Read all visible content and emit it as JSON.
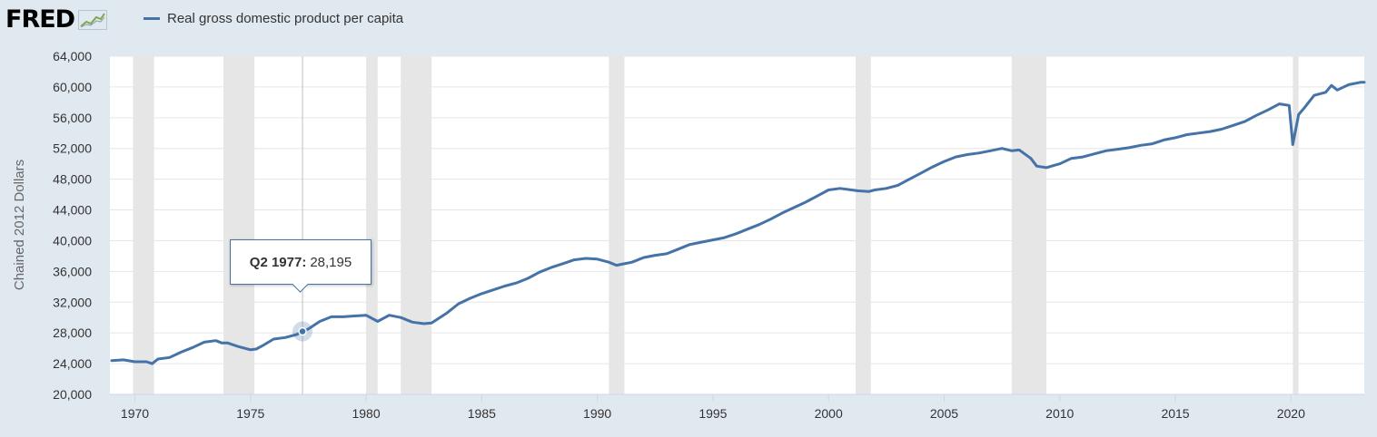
{
  "header": {
    "logo_text": "FRED",
    "legend_label": "Real gross domestic product per capita"
  },
  "tooltip": {
    "period": "Q2 1977:",
    "value": "28,195"
  },
  "colors": {
    "series": "#4572a7",
    "recession": "#e6e6e6",
    "background": "#e1e9f0",
    "grid": "#e6e6e6"
  },
  "chart_data": {
    "type": "line",
    "title": "",
    "xlabel": "",
    "ylabel": "Chained 2012 Dollars",
    "xlim": [
      1968.92,
      2023.17
    ],
    "ylim": [
      20000,
      64000
    ],
    "y_ticks": [
      "20,000",
      "24,000",
      "28,000",
      "32,000",
      "36,000",
      "40,000",
      "44,000",
      "48,000",
      "52,000",
      "56,000",
      "60,000",
      "64,000"
    ],
    "x_ticks": [
      "1970",
      "1975",
      "1980",
      "1985",
      "1990",
      "1995",
      "2000",
      "2005",
      "2010",
      "2015",
      "2020"
    ],
    "grid": true,
    "recessions": [
      [
        1969.92,
        1970.83
      ],
      [
        1973.83,
        1975.17
      ],
      [
        1980.0,
        1980.5
      ],
      [
        1981.5,
        1982.83
      ],
      [
        1990.5,
        1991.17
      ],
      [
        2001.17,
        2001.83
      ],
      [
        2007.92,
        2009.42
      ],
      [
        2020.08,
        2020.33
      ]
    ],
    "highlight": {
      "x": 1977.25,
      "y": 28195,
      "label": "Q2 1977"
    },
    "series": [
      {
        "name": "Real gross domestic product per capita",
        "x": [
          1969.0,
          1969.5,
          1970.0,
          1970.5,
          1970.75,
          1971.0,
          1971.5,
          1972.0,
          1972.5,
          1973.0,
          1973.5,
          1973.75,
          1974.0,
          1974.5,
          1975.0,
          1975.25,
          1975.5,
          1976.0,
          1976.5,
          1977.0,
          1977.25,
          1977.5,
          1978.0,
          1978.5,
          1979.0,
          1979.5,
          1980.0,
          1980.5,
          1981.0,
          1981.5,
          1982.0,
          1982.5,
          1982.83,
          1983.5,
          1984.0,
          1984.5,
          1985.0,
          1985.5,
          1986.0,
          1986.5,
          1987.0,
          1987.5,
          1988.0,
          1988.5,
          1989.0,
          1989.5,
          1990.0,
          1990.5,
          1990.83,
          1991.17,
          1991.5,
          1992.0,
          1992.5,
          1993.0,
          1993.5,
          1994.0,
          1994.5,
          1995.0,
          1995.5,
          1996.0,
          1996.5,
          1997.0,
          1997.5,
          1998.0,
          1998.5,
          1999.0,
          1999.5,
          2000.0,
          2000.5,
          2001.0,
          2001.25,
          2001.75,
          2002.0,
          2002.5,
          2003.0,
          2003.5,
          2004.0,
          2004.5,
          2005.0,
          2005.5,
          2006.0,
          2006.5,
          2007.0,
          2007.5,
          2007.92,
          2008.25,
          2008.75,
          2009.0,
          2009.42,
          2009.75,
          2010.0,
          2010.5,
          2011.0,
          2011.5,
          2012.0,
          2012.5,
          2013.0,
          2013.5,
          2014.0,
          2014.5,
          2015.0,
          2015.5,
          2016.0,
          2016.5,
          2017.0,
          2017.5,
          2018.0,
          2018.5,
          2019.0,
          2019.5,
          2019.92,
          2020.08,
          2020.33,
          2020.58,
          2021.0,
          2021.5,
          2021.75,
          2022.0,
          2022.5,
          2023.0,
          2023.17
        ],
        "values": [
          24400,
          24500,
          24250,
          24250,
          24000,
          24600,
          24800,
          25500,
          26100,
          26800,
          27000,
          26700,
          26700,
          26200,
          25800,
          25900,
          26300,
          27200,
          27400,
          27800,
          28195,
          28500,
          29500,
          30100,
          30100,
          30200,
          30300,
          29500,
          30300,
          30000,
          29400,
          29200,
          29300,
          30600,
          31800,
          32500,
          33100,
          33600,
          34100,
          34500,
          35100,
          35900,
          36500,
          37000,
          37500,
          37700,
          37600,
          37200,
          36800,
          37000,
          37200,
          37800,
          38100,
          38300,
          38900,
          39500,
          39800,
          40100,
          40400,
          40900,
          41500,
          42100,
          42800,
          43600,
          44300,
          45000,
          45800,
          46600,
          46800,
          46600,
          46500,
          46400,
          46600,
          46800,
          47200,
          48000,
          48800,
          49600,
          50300,
          50900,
          51200,
          51400,
          51700,
          52000,
          51700,
          51800,
          50700,
          49700,
          49500,
          49800,
          50000,
          50700,
          50900,
          51300,
          51700,
          51900,
          52100,
          52400,
          52600,
          53100,
          53400,
          53800,
          54000,
          54200,
          54500,
          55000,
          55500,
          56300,
          57000,
          57800,
          57600,
          52500,
          56400,
          57300,
          58900,
          59300,
          60200,
          59600,
          60300,
          60600,
          60600
        ]
      }
    ]
  }
}
